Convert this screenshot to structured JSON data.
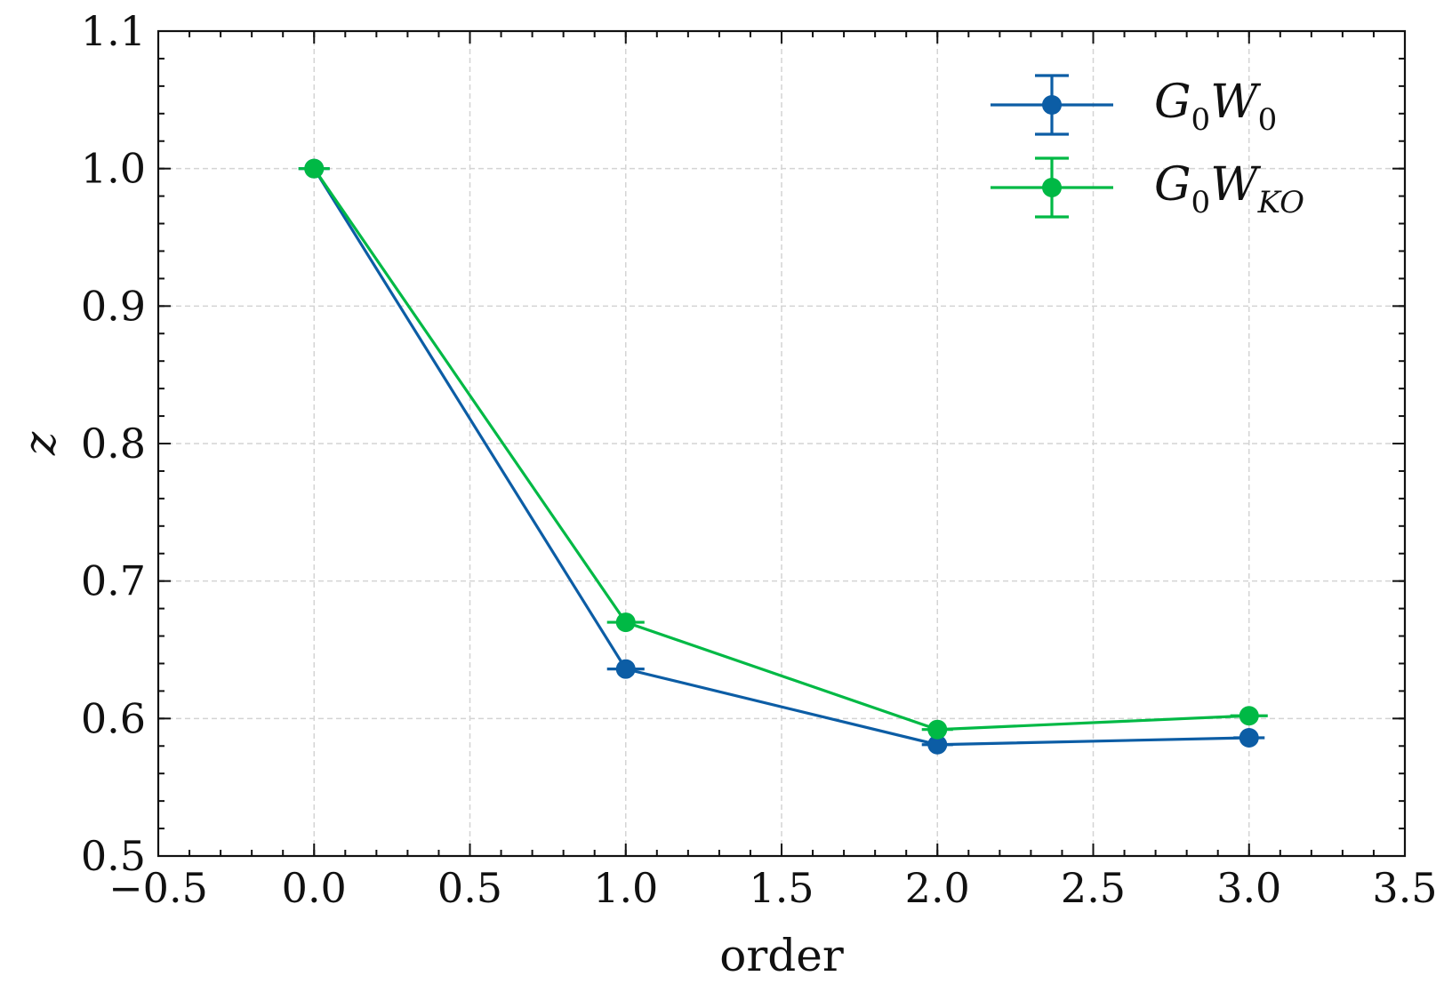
{
  "chart_data": {
    "type": "line",
    "xlabel": "order",
    "ylabel": "z",
    "xlim": [
      -0.5,
      3.5
    ],
    "ylim": [
      0.5,
      1.1
    ],
    "xticks": [
      -0.5,
      0.0,
      0.5,
      1.0,
      1.5,
      2.0,
      2.5,
      3.0,
      3.5
    ],
    "xtick_labels": [
      "−0.5",
      "0.0",
      "0.5",
      "1.0",
      "1.5",
      "2.0",
      "2.5",
      "3.0",
      "3.5"
    ],
    "yticks": [
      0.5,
      0.6,
      0.7,
      0.8,
      0.9,
      1.0,
      1.1
    ],
    "ytick_labels": [
      "0.5",
      "0.6",
      "0.7",
      "0.8",
      "0.9",
      "1.0",
      "1.1"
    ],
    "grid": true,
    "legend_position": "top-right",
    "series": [
      {
        "name": "G0W0",
        "name_main": "G",
        "name_sub1": "0",
        "name_mid": "W",
        "name_sub2": "0",
        "color": "#0C5DA5",
        "x": [
          0,
          1,
          2,
          3
        ],
        "y": [
          1.0,
          0.636,
          0.581,
          0.586
        ],
        "xerr": [
          0.05,
          0.06,
          0.05,
          0.05
        ]
      },
      {
        "name": "G0WKO",
        "name_main": "G",
        "name_sub1": "0",
        "name_mid": "W",
        "name_sub2": "KO",
        "color": "#00B945",
        "x": [
          0,
          1,
          2,
          3
        ],
        "y": [
          1.0,
          0.67,
          0.592,
          0.602
        ],
        "xerr": [
          0.05,
          0.06,
          0.05,
          0.06
        ]
      }
    ]
  }
}
